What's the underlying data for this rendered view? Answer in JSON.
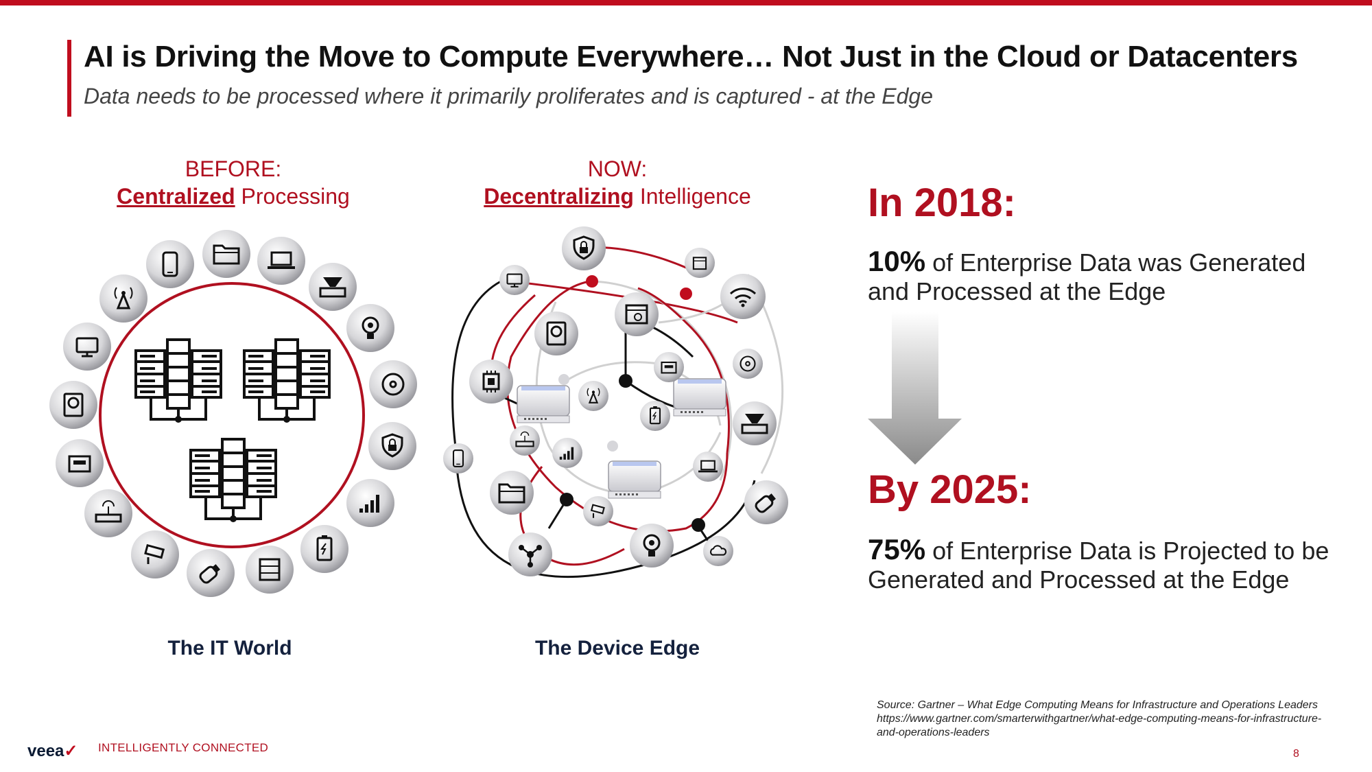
{
  "header": {
    "title": "AI is Driving the Move to Compute Everywhere… Not Just in the Cloud or Datacenters",
    "subtitle": "Data needs to be processed where it primarily proliferates and is captured - at the Edge"
  },
  "before": {
    "label": "BEFORE:",
    "keyword": "Centralized",
    "rest": " Processing",
    "caption": "The IT World"
  },
  "now": {
    "label": "NOW:",
    "keyword": "Decentralizing",
    "rest": " Intelligence",
    "caption": "The Device Edge"
  },
  "stats": {
    "year1": "In 2018:",
    "pct1": "10%",
    "text1": " of Enterprise Data was Generated and Processed at the Edge",
    "year2": "By 2025:",
    "pct2": "75%",
    "text2": " of Enterprise Data is Projected to be Generated and Processed at the Edge"
  },
  "source": {
    "line1": "Source: Gartner – What Edge Computing Means for Infrastructure and Operations Leaders",
    "line2": "https://www.gartner.com/smarterwithgartner/what-edge-computing-means-for-infrastructure-and-operations-leaders"
  },
  "footer": {
    "logo": "veea",
    "tagline": "INTELLIGENTLY CONNECTED",
    "page": "8"
  },
  "colors": {
    "accent": "#c00d1e",
    "navy": "#14213d"
  },
  "icons": [
    "mobile-icon",
    "folder-icon",
    "laptop-icon",
    "scanner-icon",
    "lightbulb-icon",
    "disc-icon",
    "shield-lock-icon",
    "signal-bars-icon",
    "battery-icon",
    "server-icon",
    "usb-drive-icon",
    "security-camera-icon",
    "router-icon",
    "meter-icon",
    "hard-drive-icon",
    "monitor-icon",
    "antenna-icon",
    "wifi-icon",
    "cpu-icon",
    "network-icon",
    "hub-icon",
    "calendar-icon",
    "cloud-icon"
  ]
}
